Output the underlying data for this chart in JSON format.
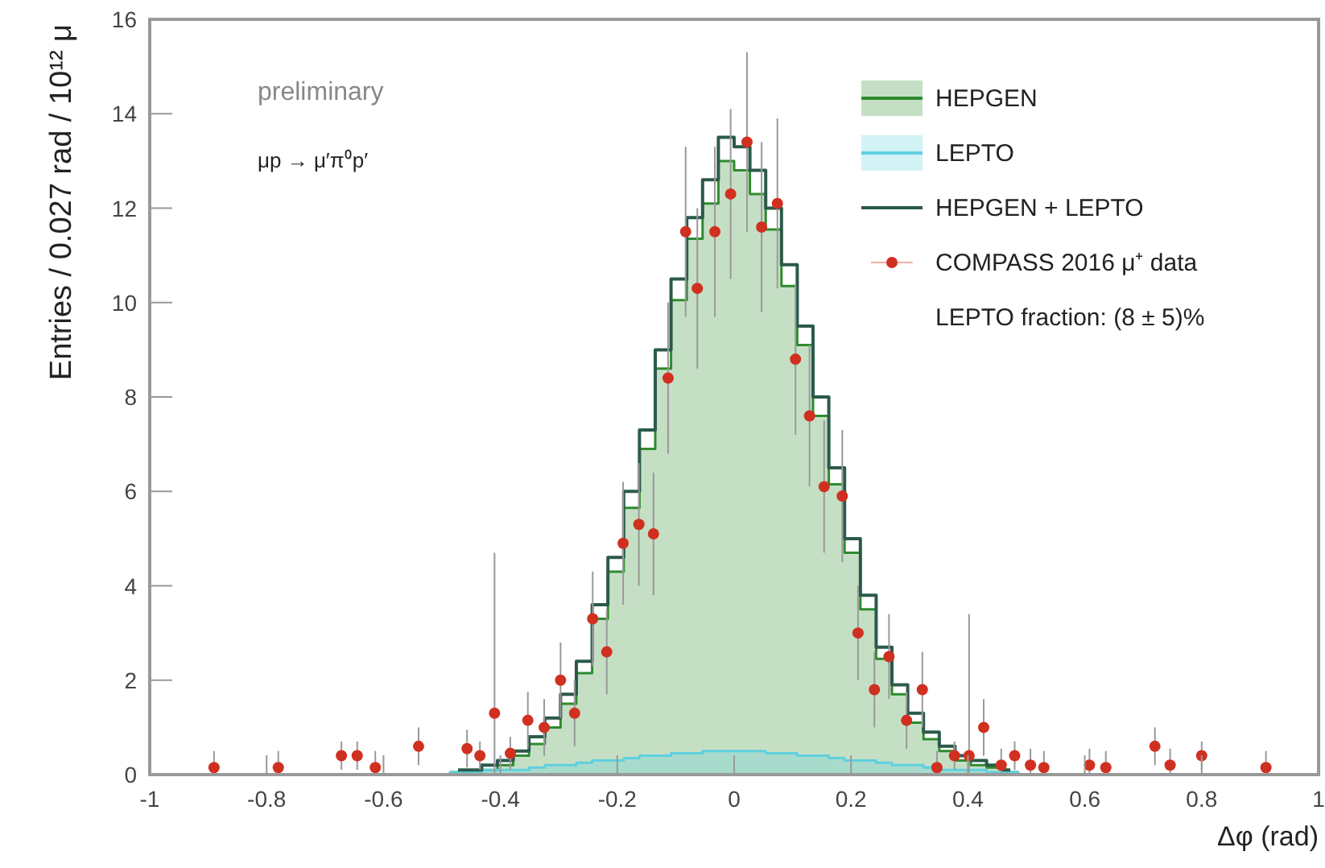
{
  "chart_data": {
    "type": "histogram",
    "xlabel": "Δφ (rad)",
    "ylabel": "Entries / 0.027 rad / 10¹² μ",
    "annotations": [
      "preliminary",
      "μp → μ′π⁰p′",
      "LEPTO fraction: (8 ± 5)%"
    ],
    "bins": [
      -0.486,
      -0.459,
      -0.432,
      -0.405,
      -0.378,
      -0.351,
      -0.324,
      -0.297,
      -0.27,
      -0.243,
      -0.216,
      -0.189,
      -0.162,
      -0.135,
      -0.108,
      -0.081,
      -0.054,
      -0.027,
      0,
      0.027,
      0.054,
      0.081,
      0.108,
      0.135,
      0.162,
      0.189,
      0.216,
      0.243,
      0.27,
      0.297,
      0.324,
      0.351,
      0.378,
      0.405,
      0.432,
      0.459,
      0.486
    ],
    "series": [
      {
        "name": "HEPGEN",
        "color": "#2e8b2e",
        "values": [
          0.05,
          0.05,
          0.1,
          0.2,
          0.4,
          0.65,
          1.0,
          1.5,
          2.15,
          3.3,
          4.3,
          5.65,
          6.9,
          8.6,
          10.05,
          11.35,
          12.1,
          13.0,
          12.8,
          12.3,
          11.55,
          10.35,
          9.1,
          7.6,
          6.15,
          4.7,
          3.5,
          2.45,
          1.7,
          1.1,
          0.75,
          0.5,
          0.3,
          0.2,
          0.15,
          0.05
        ]
      },
      {
        "name": "LEPTO",
        "type": "histogram",
        "color": "#5fd0e0",
        "values": [
          0.05,
          0.05,
          0.1,
          0.1,
          0.1,
          0.15,
          0.2,
          0.2,
          0.25,
          0.3,
          0.3,
          0.35,
          0.4,
          0.4,
          0.45,
          0.45,
          0.5,
          0.5,
          0.5,
          0.5,
          0.45,
          0.45,
          0.4,
          0.4,
          0.35,
          0.3,
          0.3,
          0.25,
          0.2,
          0.2,
          0.15,
          0.1,
          0.1,
          0.1,
          0.05,
          0.05
        ]
      },
      {
        "name": "HEPGEN + LEPTO",
        "type": "step",
        "color": "#2b5a4a",
        "x": [
          -0.4725,
          -0.4455,
          -0.4185,
          -0.3915,
          -0.3645,
          -0.3375,
          -0.3105,
          -0.2835,
          -0.2565,
          -0.2295,
          -0.2025,
          -0.1755,
          -0.1485,
          -0.1215,
          -0.0945,
          -0.0675,
          -0.0405,
          -0.0135,
          0.0135,
          0.0405,
          0.0675,
          0.0945,
          0.1215,
          0.1485,
          0.1755,
          0.2025,
          0.2295,
          0.2565,
          0.2835,
          0.3105,
          0.3375,
          0.3645,
          0.3915,
          0.4185,
          0.4455,
          0.4725
        ],
        "values": [
          0.1,
          0.1,
          0.2,
          0.3,
          0.5,
          0.8,
          1.2,
          1.7,
          2.4,
          3.6,
          4.6,
          6.0,
          7.3,
          9.0,
          10.5,
          11.8,
          12.6,
          13.5,
          13.3,
          12.8,
          12.0,
          10.8,
          9.5,
          8.0,
          6.5,
          5.0,
          3.8,
          2.7,
          1.9,
          1.3,
          0.9,
          0.6,
          0.4,
          0.3,
          0.2,
          0.1
        ]
      },
      {
        "name": "COMPASS 2016 μ⁺ data",
        "type": "scatter",
        "color": "#d03020",
        "marker": "circle",
        "x": [
          -0.89,
          -0.78,
          -0.672,
          -0.645,
          -0.614,
          -0.54,
          -0.457,
          -0.435,
          -0.41,
          -0.383,
          -0.353,
          -0.325,
          -0.297,
          -0.273,
          -0.242,
          -0.218,
          -0.19,
          -0.163,
          -0.138,
          -0.113,
          -0.083,
          -0.063,
          -0.033,
          -0.006,
          0.022,
          0.047,
          0.074,
          0.105,
          0.129,
          0.154,
          0.185,
          0.212,
          0.24,
          0.265,
          0.295,
          0.322,
          0.347,
          0.377,
          0.402,
          0.427,
          0.457,
          0.48,
          0.507,
          0.53,
          0.608,
          0.636,
          0.72,
          0.746,
          0.8,
          0.91
        ],
        "values": [
          0.15,
          0.15,
          0.4,
          0.4,
          0.15,
          0.6,
          0.55,
          0.4,
          1.3,
          0.45,
          1.15,
          1.0,
          2.0,
          1.3,
          3.3,
          2.6,
          4.9,
          5.3,
          5.1,
          8.4,
          11.5,
          10.3,
          11.5,
          12.3,
          13.4,
          11.6,
          12.1,
          8.8,
          7.6,
          6.1,
          5.9,
          3.0,
          1.8,
          2.5,
          1.15,
          1.8,
          0.15,
          0.4,
          0.4,
          1.0,
          0.2,
          0.4,
          0.2,
          0.15,
          0.2,
          0.15,
          0.6,
          0.2,
          0.4,
          0.15
        ],
        "errors": [
          [
            0,
            0.5
          ],
          [
            0,
            0.5
          ],
          0.3,
          0.3,
          [
            0,
            0.5
          ],
          0.4,
          0.4,
          0.3,
          [
            0,
            4.7
          ],
          0.35,
          0.6,
          0.6,
          0.8,
          0.7,
          1.0,
          0.9,
          1.3,
          1.3,
          1.3,
          1.6,
          1.8,
          1.7,
          1.8,
          1.8,
          1.9,
          1.8,
          1.8,
          1.6,
          1.5,
          1.4,
          1.4,
          1.0,
          0.8,
          0.9,
          0.6,
          0.8,
          [
            0,
            0.5
          ],
          0.3,
          [
            0,
            3.4
          ],
          0.6,
          [
            0,
            0.55
          ],
          0.3,
          [
            0,
            0.55
          ],
          [
            0,
            0.5
          ],
          [
            0,
            0.55
          ],
          [
            0,
            0.5
          ],
          0.4,
          [
            0,
            0.55
          ],
          0.3,
          [
            0,
            0.5
          ]
        ]
      }
    ],
    "xlim": [
      -1,
      1
    ],
    "xticks": [
      -1,
      -0.8,
      -0.6,
      -0.4,
      -0.2,
      0,
      0.2,
      0.4,
      0.6,
      0.8,
      1
    ],
    "ylim": [
      0,
      16
    ],
    "yticks": [
      0,
      2,
      4,
      6,
      8,
      10,
      12,
      14,
      16
    ],
    "grid": false,
    "legend": "top right"
  }
}
